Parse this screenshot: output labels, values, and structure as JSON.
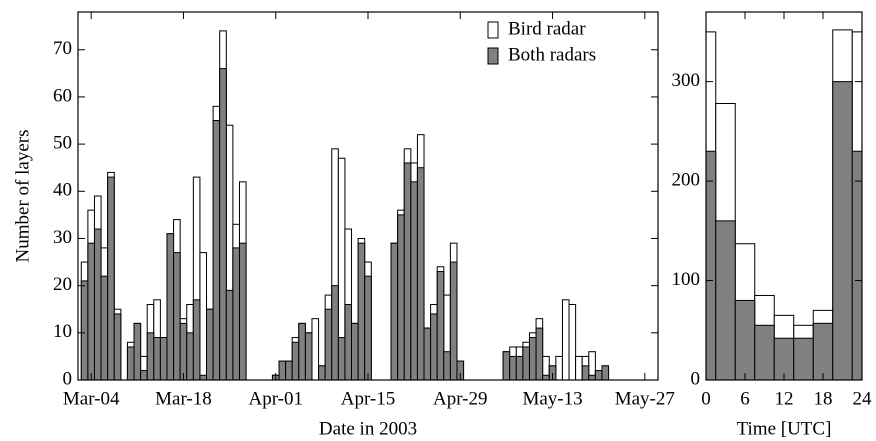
{
  "chart_data": [
    {
      "type": "bar",
      "xlabel": "Date in 2003",
      "ylabel": "Number of layers",
      "x": [
        "Mar-03",
        "Mar-04",
        "Mar-05",
        "Mar-06",
        "Mar-07",
        "Mar-08",
        "Mar-10",
        "Mar-11",
        "Mar-12",
        "Mar-13",
        "Mar-14",
        "Mar-15",
        "Mar-16",
        "Mar-17",
        "Mar-18",
        "Mar-19",
        "Mar-20",
        "Mar-21",
        "Mar-22",
        "Mar-23",
        "Mar-24",
        "Mar-25",
        "Mar-26",
        "Mar-27",
        "Apr-01",
        "Apr-02",
        "Apr-03",
        "Apr-04",
        "Apr-05",
        "Apr-06",
        "Apr-07",
        "Apr-08",
        "Apr-09",
        "Apr-10",
        "Apr-11",
        "Apr-12",
        "Apr-13",
        "Apr-14",
        "Apr-15",
        "Apr-19",
        "Apr-20",
        "Apr-21",
        "Apr-22",
        "Apr-23",
        "Apr-24",
        "Apr-25",
        "Apr-26",
        "Apr-27",
        "Apr-28",
        "Apr-29",
        "May-06",
        "May-07",
        "May-08",
        "May-09",
        "May-10",
        "May-11",
        "May-12",
        "May-13",
        "May-14",
        "May-15",
        "May-16",
        "May-17",
        "May-18",
        "May-19",
        "May-20",
        "May-21"
      ],
      "series": [
        {
          "name": "Bird radar",
          "color": "#ffffff",
          "values": [
            25,
            36,
            39,
            28,
            44,
            15,
            8,
            12,
            5,
            16,
            17,
            9,
            31,
            34,
            13,
            16,
            43,
            27,
            15,
            58,
            74,
            54,
            33,
            42,
            1,
            4,
            4,
            9,
            12,
            10,
            13,
            3,
            18,
            49,
            47,
            32,
            12,
            30,
            25,
            29,
            36,
            49,
            46,
            52,
            11,
            16,
            24,
            18,
            29,
            4,
            6,
            7,
            7,
            8,
            10,
            13,
            5,
            3,
            5,
            17,
            16,
            5,
            5,
            6,
            2,
            3
          ]
        },
        {
          "name": "Both radars",
          "color": "#808080",
          "values": [
            21,
            29,
            32,
            22,
            43,
            14,
            7,
            12,
            2,
            10,
            9,
            9,
            31,
            27,
            12,
            10,
            17,
            1,
            15,
            55,
            66,
            19,
            28,
            29,
            1,
            4,
            4,
            8,
            12,
            10,
            0,
            3,
            15,
            20,
            9,
            16,
            12,
            29,
            22,
            29,
            35,
            46,
            42,
            45,
            11,
            14,
            23,
            6,
            25,
            4,
            6,
            5,
            5,
            7,
            9,
            11,
            1,
            3,
            0,
            0,
            0,
            0,
            3,
            1,
            2,
            3
          ]
        }
      ],
      "xlim": [
        "Mar-02",
        "May-29"
      ],
      "xticks": [
        "Mar-04",
        "Mar-18",
        "Apr-01",
        "Apr-15",
        "Apr-29",
        "May-13",
        "May-27"
      ],
      "ylim": [
        0,
        78
      ],
      "yticks": [
        0,
        10,
        20,
        30,
        40,
        50,
        60,
        70
      ],
      "legend": "top-right"
    },
    {
      "type": "histogram",
      "xlabel": "Time [UTC]",
      "bins": [
        0,
        1.5,
        4.5,
        7.5,
        10.5,
        13.5,
        16.5,
        19.5,
        22.5,
        24
      ],
      "series": [
        {
          "name": "Bird radar",
          "color": "#ffffff",
          "values": [
            350,
            278,
            137,
            85,
            65,
            55,
            70,
            352,
            350
          ]
        },
        {
          "name": "Both radars",
          "color": "#808080",
          "values": [
            230,
            160,
            80,
            55,
            42,
            42,
            57,
            300,
            230
          ]
        }
      ],
      "xlim": [
        0,
        24
      ],
      "xticks": [
        0,
        6,
        12,
        18,
        24
      ],
      "ylim": [
        0,
        370
      ],
      "yticks": [
        0,
        100,
        200,
        300
      ]
    }
  ]
}
